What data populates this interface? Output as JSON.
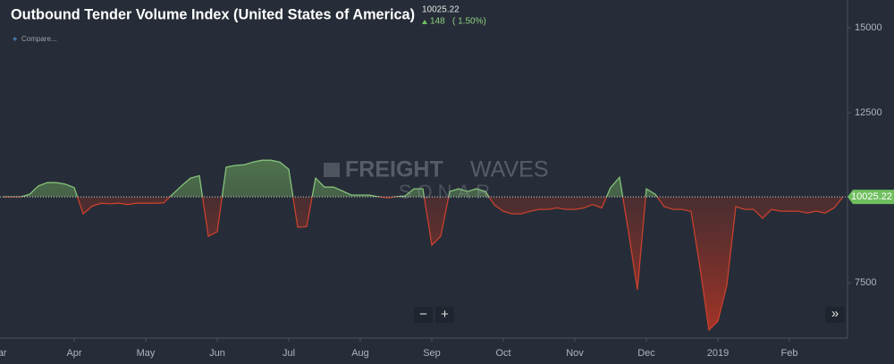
{
  "chart_data": {
    "type": "area",
    "title": "Outbound Tender Volume Index (United States of America)",
    "last_value": 10025.22,
    "change": 148,
    "change_percent_label": "( 1.50%)",
    "compare_label": "Compare...",
    "watermark": {
      "brand_bold": "FREIGHT",
      "brand_light": "WAVES",
      "product": "SONAR"
    },
    "controls": {
      "zoom_out": "−",
      "zoom_in": "+",
      "forward": "»"
    },
    "colors": {
      "above": "#86c27a",
      "below": "#c9402e",
      "marker": "#6fbf5f"
    },
    "categories": [
      "Mar",
      null,
      null,
      null,
      null,
      null,
      null,
      null,
      "Apr",
      null,
      null,
      null,
      null,
      null,
      null,
      null,
      "May",
      null,
      null,
      null,
      null,
      null,
      null,
      null,
      "Jun",
      null,
      null,
      null,
      null,
      null,
      null,
      null,
      "Jul",
      null,
      null,
      null,
      null,
      null,
      null,
      null,
      "Aug",
      null,
      null,
      null,
      null,
      null,
      null,
      null,
      "Sep",
      null,
      null,
      null,
      null,
      null,
      null,
      null,
      "Oct",
      null,
      null,
      null,
      null,
      null,
      null,
      null,
      "Nov",
      null,
      null,
      null,
      null,
      null,
      null,
      null,
      "Dec",
      null,
      null,
      null,
      null,
      null,
      null,
      null,
      "2019",
      null,
      null,
      null,
      null,
      null,
      null,
      null,
      "Feb",
      null,
      null,
      null,
      null,
      null,
      null
    ],
    "values": [
      10025,
      10025,
      10025,
      10100,
      10350,
      10446,
      10446,
      10400,
      10300,
      9525,
      9750,
      9840,
      9820,
      9840,
      9800,
      9840,
      9840,
      9840,
      9850,
      10100,
      10350,
      10577,
      10650,
      8868,
      9000,
      10900,
      10950,
      10972,
      11050,
      11103,
      11103,
      11050,
      10840,
      9131,
      9150,
      10577,
      10314,
      10314,
      10200,
      10078,
      10078,
      10078,
      10030,
      10000,
      10030,
      10050,
      10262,
      10262,
      8605,
      8868,
      10183,
      10262,
      10183,
      10262,
      10183,
      9788,
      9600,
      9525,
      9525,
      9600,
      9657,
      9657,
      9700,
      9657,
      9657,
      9700,
      9800,
      9700,
      10300,
      10600,
      9000,
      7290,
      10262,
      10100,
      9736,
      9657,
      9657,
      9600,
      7947,
      6106,
      6369,
      7421,
      9736,
      9657,
      9657,
      9394,
      9657,
      9604,
      9604,
      9604,
      9550,
      9604,
      9550,
      9700,
      10025
    ],
    "ylim": [
      5870,
      15820
    ],
    "yticks": [
      7500,
      12500,
      15000
    ]
  }
}
